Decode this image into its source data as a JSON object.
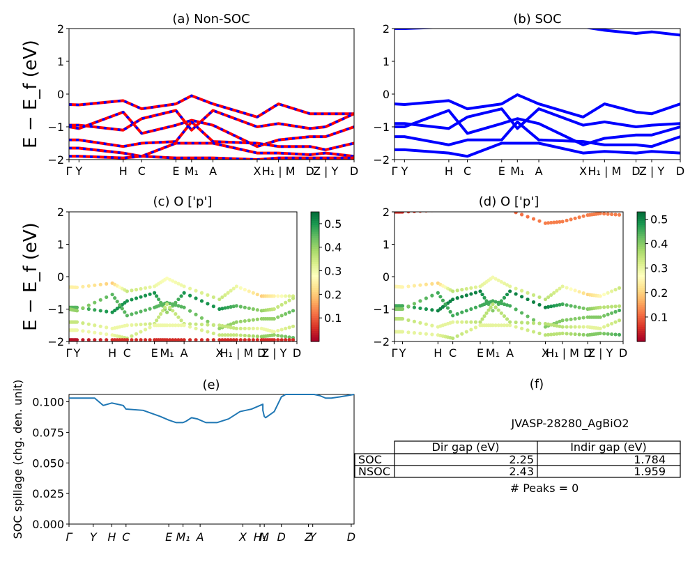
{
  "kpoint_labels": [
    "Γ",
    "Y",
    "H",
    "C",
    "E",
    "M₁",
    "A",
    "X",
    "H₁ | M",
    "D",
    "Z | Y",
    "D"
  ],
  "kpoint_positions": [
    0,
    0.035,
    0.19,
    0.255,
    0.375,
    0.43,
    0.505,
    0.66,
    0.735,
    0.845,
    0.9,
    1.0
  ],
  "energy_axis": {
    "label": "E − E_f (eV)",
    "ticks": [
      "−2",
      "−1",
      "0",
      "1",
      "2"
    ],
    "ylim": [
      -2,
      2
    ]
  },
  "panels": {
    "a": {
      "title": "(a) Non-SOC",
      "colors": [
        "#ff0000",
        "#0000ff"
      ]
    },
    "b": {
      "title": "(b) SOC",
      "color": "#0000ff"
    },
    "c": {
      "title": "(c)  O ['p']",
      "colorbar_ticks": [
        "0.1",
        "0.2",
        "0.3",
        "0.4",
        "0.5"
      ],
      "colorbar_range": [
        0.0,
        0.55
      ]
    },
    "d": {
      "title": "(d) O ['p']",
      "colorbar_ticks": [
        "0.1",
        "0.2",
        "0.3",
        "0.4",
        "0.5"
      ],
      "colorbar_range": [
        0.0,
        0.53
      ]
    },
    "e": {
      "title": "(e)",
      "ylabel": "SOC spillage (chg. den. unit)",
      "yticks": [
        "0.000",
        "0.025",
        "0.050",
        "0.075",
        "0.100"
      ],
      "xticks": [
        "Γ",
        "Y",
        "H",
        "C",
        "E",
        "M₁",
        "A",
        "X",
        "H₁",
        "M",
        "D",
        "Z",
        "Y",
        "D"
      ]
    },
    "f": {
      "title": "(f)",
      "material": "JVASP-28280_AgBiO2",
      "table": {
        "headers": [
          "Dir gap (eV)",
          "Indir gap (eV)"
        ],
        "rows": [
          {
            "label": "SOC",
            "dir": "2.25",
            "indir": "1.784"
          },
          {
            "label": "NSOC",
            "dir": "2.43",
            "indir": "1.959"
          }
        ]
      },
      "peaks": "# Peaks = 0"
    }
  },
  "chart_data": [
    {
      "type": "line",
      "title": "(a) Non-SOC",
      "ylabel": "E − E_f (eV)",
      "ylim": [
        -2,
        2
      ],
      "x": [
        0,
        0.035,
        0.19,
        0.255,
        0.375,
        0.43,
        0.505,
        0.66,
        0.735,
        0.845,
        0.9,
        1.0
      ],
      "series": [
        {
          "values": [
            -0.32,
            -0.33,
            -0.2,
            -0.45,
            -0.3,
            -0.05,
            -0.3,
            -0.7,
            -0.3,
            -0.6,
            -0.6,
            -0.6
          ]
        },
        {
          "values": [
            -0.95,
            -0.95,
            -1.1,
            -0.75,
            -0.5,
            -1.1,
            -0.5,
            -1.0,
            -0.9,
            -1.05,
            -1.0,
            -0.6
          ]
        },
        {
          "values": [
            -1.0,
            -1.05,
            -0.55,
            -1.2,
            -0.95,
            -0.8,
            -0.95,
            -1.6,
            -1.4,
            -1.3,
            -1.3,
            -1.0
          ]
        },
        {
          "values": [
            -1.4,
            -1.4,
            -1.6,
            -1.5,
            -1.45,
            -0.85,
            -1.45,
            -1.5,
            -1.6,
            -1.6,
            -1.7,
            -1.5
          ]
        },
        {
          "values": [
            -1.65,
            -1.65,
            -1.8,
            -1.9,
            -1.5,
            -1.5,
            -1.5,
            -1.8,
            -1.8,
            -1.85,
            -1.8,
            -1.9
          ]
        },
        {
          "values": [
            -1.9,
            -1.9,
            -1.95,
            -1.9,
            -1.95,
            -1.95,
            -1.95,
            -2.0,
            -1.95,
            -1.95,
            -1.95,
            -1.95
          ]
        }
      ]
    },
    {
      "type": "line",
      "title": "(b) SOC",
      "ylim": [
        -2,
        2
      ],
      "x": [
        0,
        0.035,
        0.19,
        0.255,
        0.375,
        0.43,
        0.505,
        0.66,
        0.735,
        0.845,
        0.9,
        1.0
      ],
      "series": [
        {
          "values": [
            -0.3,
            -0.32,
            -0.2,
            -0.45,
            -0.3,
            -0.02,
            -0.3,
            -0.7,
            -0.3,
            -0.55,
            -0.6,
            -0.3
          ]
        },
        {
          "values": [
            -0.9,
            -0.9,
            -1.05,
            -0.7,
            -0.45,
            -1.05,
            -0.45,
            -0.95,
            -0.85,
            -1.0,
            -0.95,
            -0.9
          ]
        },
        {
          "values": [
            -1.0,
            -1.0,
            -0.5,
            -1.2,
            -0.9,
            -0.75,
            -0.9,
            -1.55,
            -1.35,
            -1.25,
            -1.25,
            -1.0
          ]
        },
        {
          "values": [
            -1.3,
            -1.3,
            -1.55,
            -1.4,
            -1.4,
            -0.85,
            -1.4,
            -1.45,
            -1.55,
            -1.55,
            -1.6,
            -1.3
          ]
        },
        {
          "values": [
            -1.7,
            -1.7,
            -1.8,
            -1.9,
            -1.5,
            -1.5,
            -1.5,
            -1.8,
            -1.75,
            -1.8,
            -1.75,
            -1.8
          ]
        },
        {
          "values": [
            2.0,
            2.0,
            2.05,
            2.05,
            2.05,
            2.05,
            2.05,
            2.05,
            1.95,
            1.85,
            1.9,
            1.8
          ]
        }
      ]
    },
    {
      "type": "scatter",
      "title": "(c)  O ['p']",
      "ylim": [
        -2,
        2
      ],
      "colorbar": [
        0.0,
        0.55
      ],
      "x": [
        0,
        0.035,
        0.19,
        0.255,
        0.375,
        0.43,
        0.505,
        0.66,
        0.735,
        0.845,
        0.9,
        1.0
      ],
      "series": [
        {
          "values": [
            -0.32,
            -0.33,
            -0.2,
            -0.45,
            -0.3,
            -0.05,
            -0.3,
            -0.7,
            -0.3,
            -0.6,
            -0.6,
            -0.6
          ],
          "weight": [
            0.25,
            0.25,
            0.2,
            0.35,
            0.3,
            0.28,
            0.3,
            0.35,
            0.3,
            0.2,
            0.25,
            0.35
          ]
        },
        {
          "values": [
            -0.95,
            -0.95,
            -1.1,
            -0.75,
            -0.5,
            -1.1,
            -0.5,
            -1.0,
            -0.9,
            -1.05,
            -1.0,
            -0.6
          ],
          "weight": [
            0.45,
            0.45,
            0.5,
            0.5,
            0.5,
            0.4,
            0.5,
            0.5,
            0.45,
            0.4,
            0.35,
            0.35
          ]
        },
        {
          "values": [
            -1.0,
            -1.05,
            -0.55,
            -1.2,
            -0.95,
            -0.8,
            -0.95,
            -1.6,
            -1.4,
            -1.3,
            -1.3,
            -1.0
          ],
          "weight": [
            0.4,
            0.4,
            0.45,
            0.45,
            0.45,
            0.45,
            0.45,
            0.4,
            0.4,
            0.4,
            0.4,
            0.45
          ]
        },
        {
          "values": [
            -1.4,
            -1.4,
            -1.6,
            -1.5,
            -1.45,
            -0.85,
            -1.45,
            -1.5,
            -1.6,
            -1.6,
            -1.7,
            -1.5
          ],
          "weight": [
            0.35,
            0.35,
            0.3,
            0.3,
            0.35,
            0.35,
            0.35,
            0.35,
            0.35,
            0.3,
            0.3,
            0.35
          ]
        },
        {
          "values": [
            -1.65,
            -1.65,
            -1.8,
            -1.9,
            -1.5,
            -1.5,
            -1.5,
            -1.8,
            -1.8,
            -1.85,
            -1.8,
            -1.9
          ],
          "weight": [
            0.3,
            0.3,
            0.3,
            0.35,
            0.3,
            0.3,
            0.3,
            0.35,
            0.35,
            0.4,
            0.4,
            0.45
          ]
        },
        {
          "values": [
            -1.95,
            -1.95,
            -1.95,
            -1.95,
            -1.95,
            -1.95,
            -1.95,
            -1.95,
            -1.95,
            -1.95,
            -1.95,
            -1.95
          ],
          "weight": [
            0.02,
            0.02,
            0.05,
            0.05,
            0.05,
            0.05,
            0.05,
            0.05,
            0.05,
            0.05,
            0.05,
            0.05
          ]
        }
      ]
    },
    {
      "type": "scatter",
      "title": "(d) O ['p']",
      "ylim": [
        -2,
        2
      ],
      "colorbar": [
        0.0,
        0.53
      ],
      "x": [
        0,
        0.035,
        0.19,
        0.255,
        0.375,
        0.43,
        0.505,
        0.66,
        0.735,
        0.845,
        0.9,
        1.0
      ],
      "series": [
        {
          "values": [
            -0.3,
            -0.32,
            -0.2,
            -0.45,
            -0.3,
            -0.02,
            -0.3,
            -0.7,
            -0.3,
            -0.55,
            -0.6,
            -0.3
          ],
          "weight": [
            0.25,
            0.25,
            0.2,
            0.35,
            0.3,
            0.28,
            0.3,
            0.35,
            0.3,
            0.2,
            0.25,
            0.35
          ]
        },
        {
          "values": [
            -0.9,
            -0.9,
            -1.05,
            -0.7,
            -0.45,
            -1.05,
            -0.45,
            -0.95,
            -0.85,
            -1.0,
            -0.95,
            -0.9
          ],
          "weight": [
            0.45,
            0.45,
            0.5,
            0.5,
            0.5,
            0.4,
            0.5,
            0.5,
            0.45,
            0.4,
            0.35,
            0.35
          ]
        },
        {
          "values": [
            -1.0,
            -1.0,
            -0.5,
            -1.2,
            -0.9,
            -0.75,
            -0.9,
            -1.55,
            -1.35,
            -1.25,
            -1.25,
            -1.0
          ],
          "weight": [
            0.4,
            0.4,
            0.45,
            0.45,
            0.45,
            0.45,
            0.45,
            0.4,
            0.4,
            0.4,
            0.4,
            0.45
          ]
        },
        {
          "values": [
            -1.3,
            -1.3,
            -1.55,
            -1.4,
            -1.4,
            -0.85,
            -1.4,
            -1.45,
            -1.55,
            -1.55,
            -1.6,
            -1.3
          ],
          "weight": [
            0.35,
            0.35,
            0.3,
            0.3,
            0.35,
            0.35,
            0.35,
            0.35,
            0.35,
            0.3,
            0.3,
            0.35
          ]
        },
        {
          "values": [
            -1.7,
            -1.7,
            -1.8,
            -1.9,
            -1.5,
            -1.5,
            -1.5,
            -1.8,
            -1.75,
            -1.8,
            -1.75,
            -1.8
          ],
          "weight": [
            0.3,
            0.3,
            0.3,
            0.35,
            0.3,
            0.3,
            0.3,
            0.35,
            0.35,
            0.4,
            0.4,
            0.45
          ]
        },
        {
          "values": [
            2.0,
            2.0,
            2.05,
            2.05,
            2.05,
            2.05,
            2.05,
            1.65,
            1.7,
            1.9,
            1.95,
            1.9
          ],
          "weight": [
            0.05,
            0.05,
            0.1,
            0.1,
            0.1,
            0.1,
            0.1,
            0.12,
            0.12,
            0.12,
            0.12,
            0.12
          ]
        }
      ]
    },
    {
      "type": "line",
      "title": "(e)",
      "ylabel": "SOC spillage (chg. den. unit)",
      "ylim": [
        0,
        0.106
      ],
      "x": [
        0,
        0.03,
        0.09,
        0.12,
        0.15,
        0.19,
        0.2,
        0.26,
        0.32,
        0.35,
        0.375,
        0.4,
        0.41,
        0.43,
        0.45,
        0.48,
        0.52,
        0.56,
        0.6,
        0.64,
        0.68,
        0.68,
        0.685,
        0.69,
        0.72,
        0.745,
        0.76,
        0.86,
        0.88,
        0.9,
        0.92,
        0.95,
        1.0
      ],
      "y": [
        0.103,
        0.103,
        0.103,
        0.097,
        0.099,
        0.097,
        0.094,
        0.093,
        0.088,
        0.085,
        0.083,
        0.083,
        0.084,
        0.087,
        0.086,
        0.083,
        0.083,
        0.086,
        0.092,
        0.094,
        0.098,
        0.093,
        0.088,
        0.087,
        0.092,
        0.104,
        0.106,
        0.106,
        0.105,
        0.103,
        0.103,
        0.104,
        0.106
      ]
    }
  ]
}
